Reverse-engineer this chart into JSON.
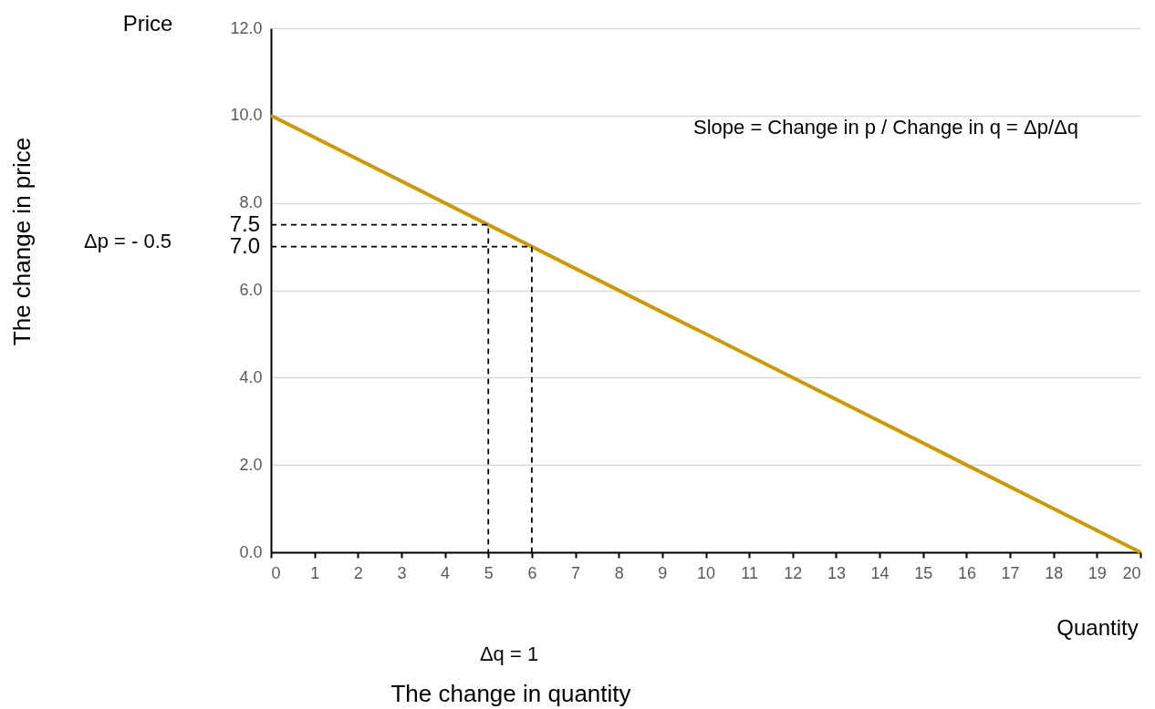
{
  "chart_data": {
    "type": "line",
    "xlabel": "Quantity",
    "ylabel": "Price",
    "xlim": [
      0,
      20
    ],
    "xticks": [
      0,
      1,
      2,
      3,
      4,
      5,
      6,
      7,
      8,
      9,
      10,
      11,
      12,
      13,
      14,
      15,
      16,
      17,
      18,
      19,
      20
    ],
    "ylim": [
      0,
      12
    ],
    "yticks": [
      {
        "value": 0,
        "label": "0.0"
      },
      {
        "value": 2,
        "label": "2.0"
      },
      {
        "value": 4,
        "label": "4.0"
      },
      {
        "value": 6,
        "label": "6.0"
      },
      {
        "value": 8,
        "label": "8.0"
      },
      {
        "value": 10,
        "label": "10.0"
      },
      {
        "value": 12,
        "label": "12.0"
      }
    ],
    "grid": "y",
    "marker": "none",
    "series": [
      {
        "color": "#cc9900",
        "x": [
          0,
          20
        ],
        "values": [
          10,
          0
        ],
        "line_style": "solid"
      },
      {
        "color": "#000000",
        "x": [
          0,
          5,
          5
        ],
        "values": [
          7.5,
          7.5,
          0
        ],
        "line_style": "dashed"
      },
      {
        "color": "#000000",
        "x": [
          0,
          6,
          6
        ],
        "values": [
          7.0,
          7.0,
          0
        ],
        "line_style": "dashed"
      }
    ],
    "annotations": [
      "7.5",
      "7.0",
      "Δp = - 0.5",
      "Δq = 1",
      "The change in quantity",
      "The change in price",
      "Slope = Change in p / Change in q = Δp/Δq"
    ]
  }
}
